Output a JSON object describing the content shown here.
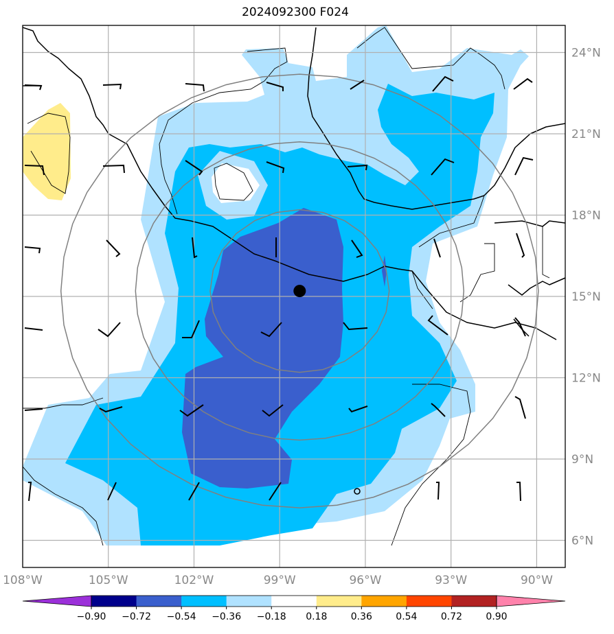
{
  "title": "2024092300 F024",
  "map": {
    "lon_range": [
      -108.0,
      -89.0
    ],
    "lat_range": [
      5.0,
      25.0
    ],
    "longitude_ticks": [
      {
        "value": -108,
        "label": "108°W"
      },
      {
        "value": -105,
        "label": "105°W"
      },
      {
        "value": -102,
        "label": "102°W"
      },
      {
        "value": -99,
        "label": "99°W"
      },
      {
        "value": -96,
        "label": "96°W"
      },
      {
        "value": -93,
        "label": "93°W"
      },
      {
        "value": -90,
        "label": "90°W"
      }
    ],
    "latitude_ticks": [
      {
        "value": 24,
        "label": "24°N"
      },
      {
        "value": 21,
        "label": "21°N"
      },
      {
        "value": 18,
        "label": "18°N"
      },
      {
        "value": 15,
        "label": "15°N"
      },
      {
        "value": 12,
        "label": "12°N"
      },
      {
        "value": 9,
        "label": "9°N"
      },
      {
        "value": 6,
        "label": "6°N"
      }
    ],
    "storm_center": {
      "lon": -98.3,
      "lat": 15.2
    },
    "range_rings_deg": [
      3,
      5.5,
      8
    ],
    "grid_color": "#b0b0b0",
    "ring_color": "#808080"
  },
  "colorbar": {
    "levels": [
      "−0.90",
      "−0.72",
      "−0.54",
      "−0.36",
      "−0.18",
      "0.18",
      "0.36",
      "0.54",
      "0.72",
      "0.90"
    ],
    "colors": [
      "#9b30d9",
      "#00008b",
      "#3a5fcd",
      "#00bfff",
      "#b0e2ff",
      "#ffffff",
      "#ffec8b",
      "#ffa500",
      "#ff4500",
      "#b22222",
      "#ff82ab"
    ],
    "extend": "both"
  },
  "fill_colors": {
    "lightblue": "#b0e2ff",
    "blue": "#00bfff",
    "darkblue": "#3a5fcd",
    "yellow": "#ffec8b"
  }
}
